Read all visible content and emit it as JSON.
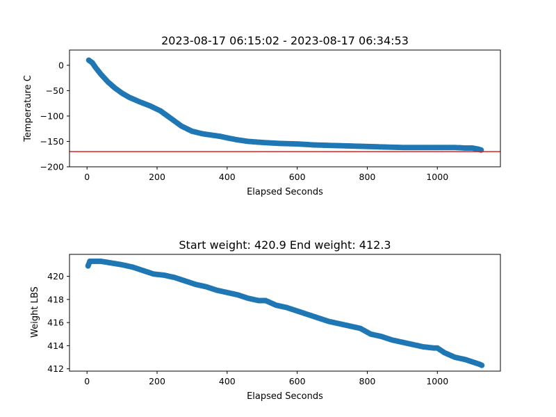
{
  "chart_data": [
    {
      "type": "scatter",
      "title": "2023-08-17 06:15:02 - 2023-08-17 06:34:53",
      "xlabel": "Elapsed Seconds",
      "ylabel": "Temperature C",
      "xlim": [
        -50,
        1180
      ],
      "ylim": [
        -200,
        30
      ],
      "xticks": [
        0,
        200,
        400,
        600,
        800,
        1000
      ],
      "xtick_labels": [
        "0",
        "200",
        "400",
        "600",
        "800",
        "1000"
      ],
      "yticks": [
        0,
        -50,
        -100,
        -150,
        -200
      ],
      "ytick_labels": [
        "0",
        "−50",
        "−100",
        "−150",
        "−200"
      ],
      "marker_color": "#1f77b4",
      "reference_line": {
        "y": -170,
        "color": "#d62728"
      },
      "grid": false,
      "series": [
        {
          "x": [
            5,
            15,
            25,
            40,
            60,
            80,
            100,
            120,
            150,
            180,
            210,
            240,
            270,
            300,
            330,
            360,
            380,
            400,
            430,
            460,
            500,
            550,
            600,
            650,
            700,
            750,
            800,
            850,
            900,
            950,
            1000,
            1050,
            1080,
            1100,
            1115,
            1125
          ],
          "y": [
            10,
            5,
            -5,
            -18,
            -33,
            -45,
            -55,
            -63,
            -72,
            -80,
            -90,
            -105,
            -120,
            -130,
            -135,
            -138,
            -140,
            -143,
            -147,
            -150,
            -152,
            -154,
            -155,
            -157,
            -158,
            -159,
            -160,
            -161,
            -162,
            -162,
            -162,
            -162,
            -163,
            -163,
            -165,
            -167
          ]
        }
      ]
    },
    {
      "type": "scatter",
      "title": "Start weight: 420.9 End weight: 412.3",
      "xlabel": "Elapsed Seconds",
      "ylabel": "Weight LBS",
      "xlim": [
        -50,
        1180
      ],
      "ylim": [
        411.8,
        421.9
      ],
      "xticks": [
        0,
        200,
        400,
        600,
        800,
        1000
      ],
      "xtick_labels": [
        "0",
        "200",
        "400",
        "600",
        "800",
        "1000"
      ],
      "yticks": [
        412,
        414,
        416,
        418,
        420
      ],
      "ytick_labels": [
        "412",
        "414",
        "416",
        "418",
        "420"
      ],
      "marker_color": "#1f77b4",
      "grid": false,
      "series": [
        {
          "x": [
            3,
            8,
            20,
            40,
            60,
            80,
            100,
            130,
            160,
            190,
            220,
            250,
            280,
            310,
            340,
            370,
            400,
            430,
            460,
            490,
            510,
            540,
            570,
            600,
            630,
            660,
            690,
            720,
            750,
            780,
            810,
            840,
            870,
            900,
            930,
            960,
            990,
            1000,
            1020,
            1050,
            1080,
            1100,
            1120,
            1127
          ],
          "y": [
            420.9,
            421.3,
            421.3,
            421.3,
            421.2,
            421.1,
            421.0,
            420.8,
            420.5,
            420.2,
            420.1,
            419.9,
            419.6,
            419.3,
            419.1,
            418.8,
            418.6,
            418.4,
            418.1,
            417.9,
            417.9,
            417.5,
            417.3,
            417.0,
            416.7,
            416.4,
            416.1,
            415.9,
            415.7,
            415.5,
            415.0,
            414.8,
            414.5,
            414.3,
            414.1,
            413.9,
            413.8,
            413.8,
            413.4,
            413.0,
            412.8,
            412.6,
            412.4,
            412.3
          ]
        }
      ]
    }
  ]
}
